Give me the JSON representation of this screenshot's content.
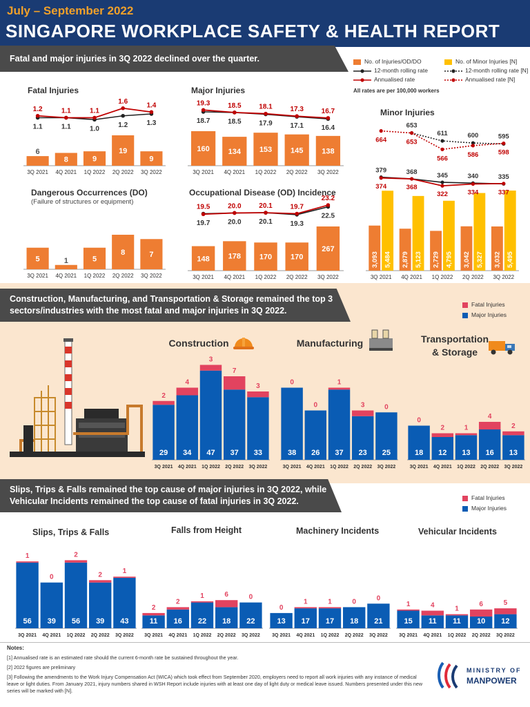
{
  "header": {
    "period": "July – September 2022",
    "title": "SINGAPORE WORKPLACE SAFETY & HEALTH REPORT"
  },
  "sections": {
    "s1_banner": "Fatal and major injuries in 3Q 2022 declined over the quarter.",
    "s2_banner_line1": "Construction, Manufacturing, and Transportation & Storage remained the top 3",
    "s2_banner_line2": "sectors/industries with the most fatal and major injuries in 3Q 2022.",
    "s3_banner_line1": "Slips, Trips & Falls remained the top cause of major injuries in 3Q 2022, while",
    "s3_banner_line2": "Vehicular Incidents remained the top cause of fatal injuries in 3Q 2022."
  },
  "legend_top": {
    "injuries": "No. of Injuries/OD/DO",
    "minor": "No. of Minor Injuries [N]",
    "rolling": "12-month rolling rate",
    "rolling_n": "12-month rolling rate [N]",
    "annualised": "Annualised rate",
    "annualised_n": "Annualised rate [N]",
    "note": "All rates are per 100,000 workers"
  },
  "legend_sector": {
    "fatal": "Fatal Injuries",
    "major": "Major Injuries"
  },
  "legend_cause": {
    "fatal": "Fatal Injuries",
    "major": "Major Injuries"
  },
  "panel_titles": {
    "fatal": "Fatal Injuries",
    "major": "Major Injuries",
    "minor": "Minor Injuries",
    "do": "Dangerous Occurrences (DO)",
    "do_sub": "(Failure of structures or equipment)",
    "od": "Occupational Disease (OD) Incidence",
    "construction": "Construction",
    "manufacturing": "Manufacturing",
    "transport_line1": "Transportation",
    "transport_line2": "& Storage",
    "slips": "Slips, Trips & Falls",
    "falls": "Falls from Height",
    "machinery": "Machinery Incidents",
    "vehicular": "Vehicular Incidents"
  },
  "colors": {
    "navy": "#1a3b73",
    "orange": "#ee7d32",
    "yellow": "#ffc000",
    "blue": "#0a5cb4",
    "pink": "#e2435f",
    "red": "#c00000",
    "black": "#222222",
    "band": "#fbe6cf"
  },
  "chart_data": [
    {
      "id": "fatal",
      "type": "bar",
      "categories": [
        "3Q 2021",
        "4Q 2021",
        "1Q 2022",
        "2Q 2022",
        "3Q 2022"
      ],
      "values": [
        6,
        8,
        9,
        19,
        9
      ],
      "annualised_rate": [
        1.2,
        1.1,
        1.1,
        1.6,
        1.4
      ],
      "rolling_rate": [
        1.1,
        1.1,
        1.0,
        1.2,
        1.3
      ]
    },
    {
      "id": "major",
      "type": "bar",
      "categories": [
        "3Q 2021",
        "4Q 2021",
        "1Q 2022",
        "2Q 2022",
        "3Q 2022"
      ],
      "values": [
        160,
        134,
        153,
        145,
        138
      ],
      "annualised_rate": [
        19.3,
        18.5,
        18.1,
        17.3,
        16.7
      ],
      "rolling_rate": [
        18.7,
        18.5,
        17.9,
        17.1,
        16.4
      ]
    },
    {
      "id": "minor",
      "type": "bar",
      "categories": [
        "3Q 2021",
        "4Q 2021",
        "1Q 2022",
        "2Q 2022",
        "3Q 2022"
      ],
      "values": [
        3093,
        2879,
        2729,
        3042,
        3032
      ],
      "value_labels": [
        "3,093",
        "2,879",
        "2,729",
        "3,042",
        "3,032"
      ],
      "values_n": [
        5484,
        5123,
        4795,
        5327,
        5495
      ],
      "value_labels_n": [
        "5,484",
        "5,123",
        "4,795",
        "5,327",
        "5,495"
      ],
      "annualised_rate": [
        374,
        368,
        322,
        334,
        337
      ],
      "rolling_rate": [
        379,
        368,
        345,
        340,
        335
      ],
      "annualised_rate_n": [
        664,
        653,
        566,
        586,
        598
      ],
      "rolling_rate_n": [
        653,
        611,
        600,
        595
      ]
    },
    {
      "id": "do",
      "type": "bar",
      "categories": [
        "3Q 2021",
        "4Q 2021",
        "1Q 2022",
        "2Q 2022",
        "3Q 2022"
      ],
      "values": [
        5,
        1,
        5,
        8,
        7
      ]
    },
    {
      "id": "od",
      "type": "bar",
      "categories": [
        "3Q 2021",
        "4Q 2021",
        "1Q 2022",
        "2Q 2022",
        "3Q 2022"
      ],
      "values": [
        148,
        178,
        170,
        170,
        267
      ],
      "annualised_rate": [
        19.5,
        20.0,
        20.1,
        19.7,
        23.2
      ],
      "rolling_rate": [
        19.7,
        20.0,
        20.1,
        19.3,
        22.5
      ]
    },
    {
      "id": "construction",
      "type": "bar",
      "categories": [
        "3Q 2021",
        "4Q 2021",
        "1Q 2022",
        "2Q 2022",
        "3Q 2022"
      ],
      "major": [
        29,
        34,
        47,
        37,
        33
      ],
      "fatal": [
        2,
        4,
        3,
        7,
        3
      ]
    },
    {
      "id": "manufacturing",
      "type": "bar",
      "categories": [
        "3Q 2021",
        "4Q 2021",
        "1Q 2022",
        "2Q 2022",
        "3Q 2022"
      ],
      "major": [
        38,
        26,
        37,
        23,
        25
      ],
      "fatal": [
        0,
        0,
        1,
        3,
        0
      ]
    },
    {
      "id": "transport",
      "type": "bar",
      "categories": [
        "3Q 2021",
        "4Q 2021",
        "1Q 2022",
        "2Q 2022",
        "3Q 2022"
      ],
      "major": [
        18,
        12,
        13,
        16,
        13
      ],
      "fatal": [
        0,
        2,
        1,
        4,
        2
      ]
    },
    {
      "id": "slips",
      "type": "bar",
      "categories": [
        "3Q 2021",
        "4Q 2021",
        "1Q 2022",
        "2Q 2022",
        "3Q 2022"
      ],
      "major": [
        56,
        39,
        56,
        39,
        43
      ],
      "fatal": [
        1,
        0,
        2,
        2,
        1
      ]
    },
    {
      "id": "falls",
      "type": "bar",
      "categories": [
        "3Q 2021",
        "4Q 2021",
        "1Q 2022",
        "2Q 2022",
        "3Q 2022"
      ],
      "major": [
        11,
        16,
        22,
        18,
        22
      ],
      "fatal": [
        2,
        2,
        1,
        6,
        0
      ]
    },
    {
      "id": "machinery",
      "type": "bar",
      "categories": [
        "3Q 2021",
        "4Q 2021",
        "1Q 2022",
        "2Q 2022",
        "3Q 2022"
      ],
      "major": [
        13,
        17,
        17,
        18,
        21
      ],
      "fatal": [
        0,
        1,
        1,
        0,
        0
      ]
    },
    {
      "id": "vehicular",
      "type": "bar",
      "categories": [
        "3Q 2021",
        "4Q 2021",
        "1Q 2022",
        "2Q 2022",
        "3Q 2022"
      ],
      "major": [
        15,
        11,
        11,
        10,
        12
      ],
      "fatal": [
        1,
        4,
        1,
        6,
        5
      ]
    }
  ],
  "notes": {
    "title": "Notes:",
    "n1": "[1]  Annualised rate is an estimated rate should the current 6-month rate be sustained throughout the year.",
    "n2": "[2]  2022 figures are preliminary",
    "n3": "[3]  Following the amendments to the Work Injury Compensation Act (WICA) which took effect from September 2020, employers need to report all work injuries with any instance of medical leave or light duties. From January 2021, injury numbers shared in WSH Report include injuries with at least one day of light duty or medical leave issued. Numbers presented under this new series will be marked with [N]."
  },
  "logo": {
    "line1": "MINISTRY OF",
    "line2": "MANPOWER"
  }
}
